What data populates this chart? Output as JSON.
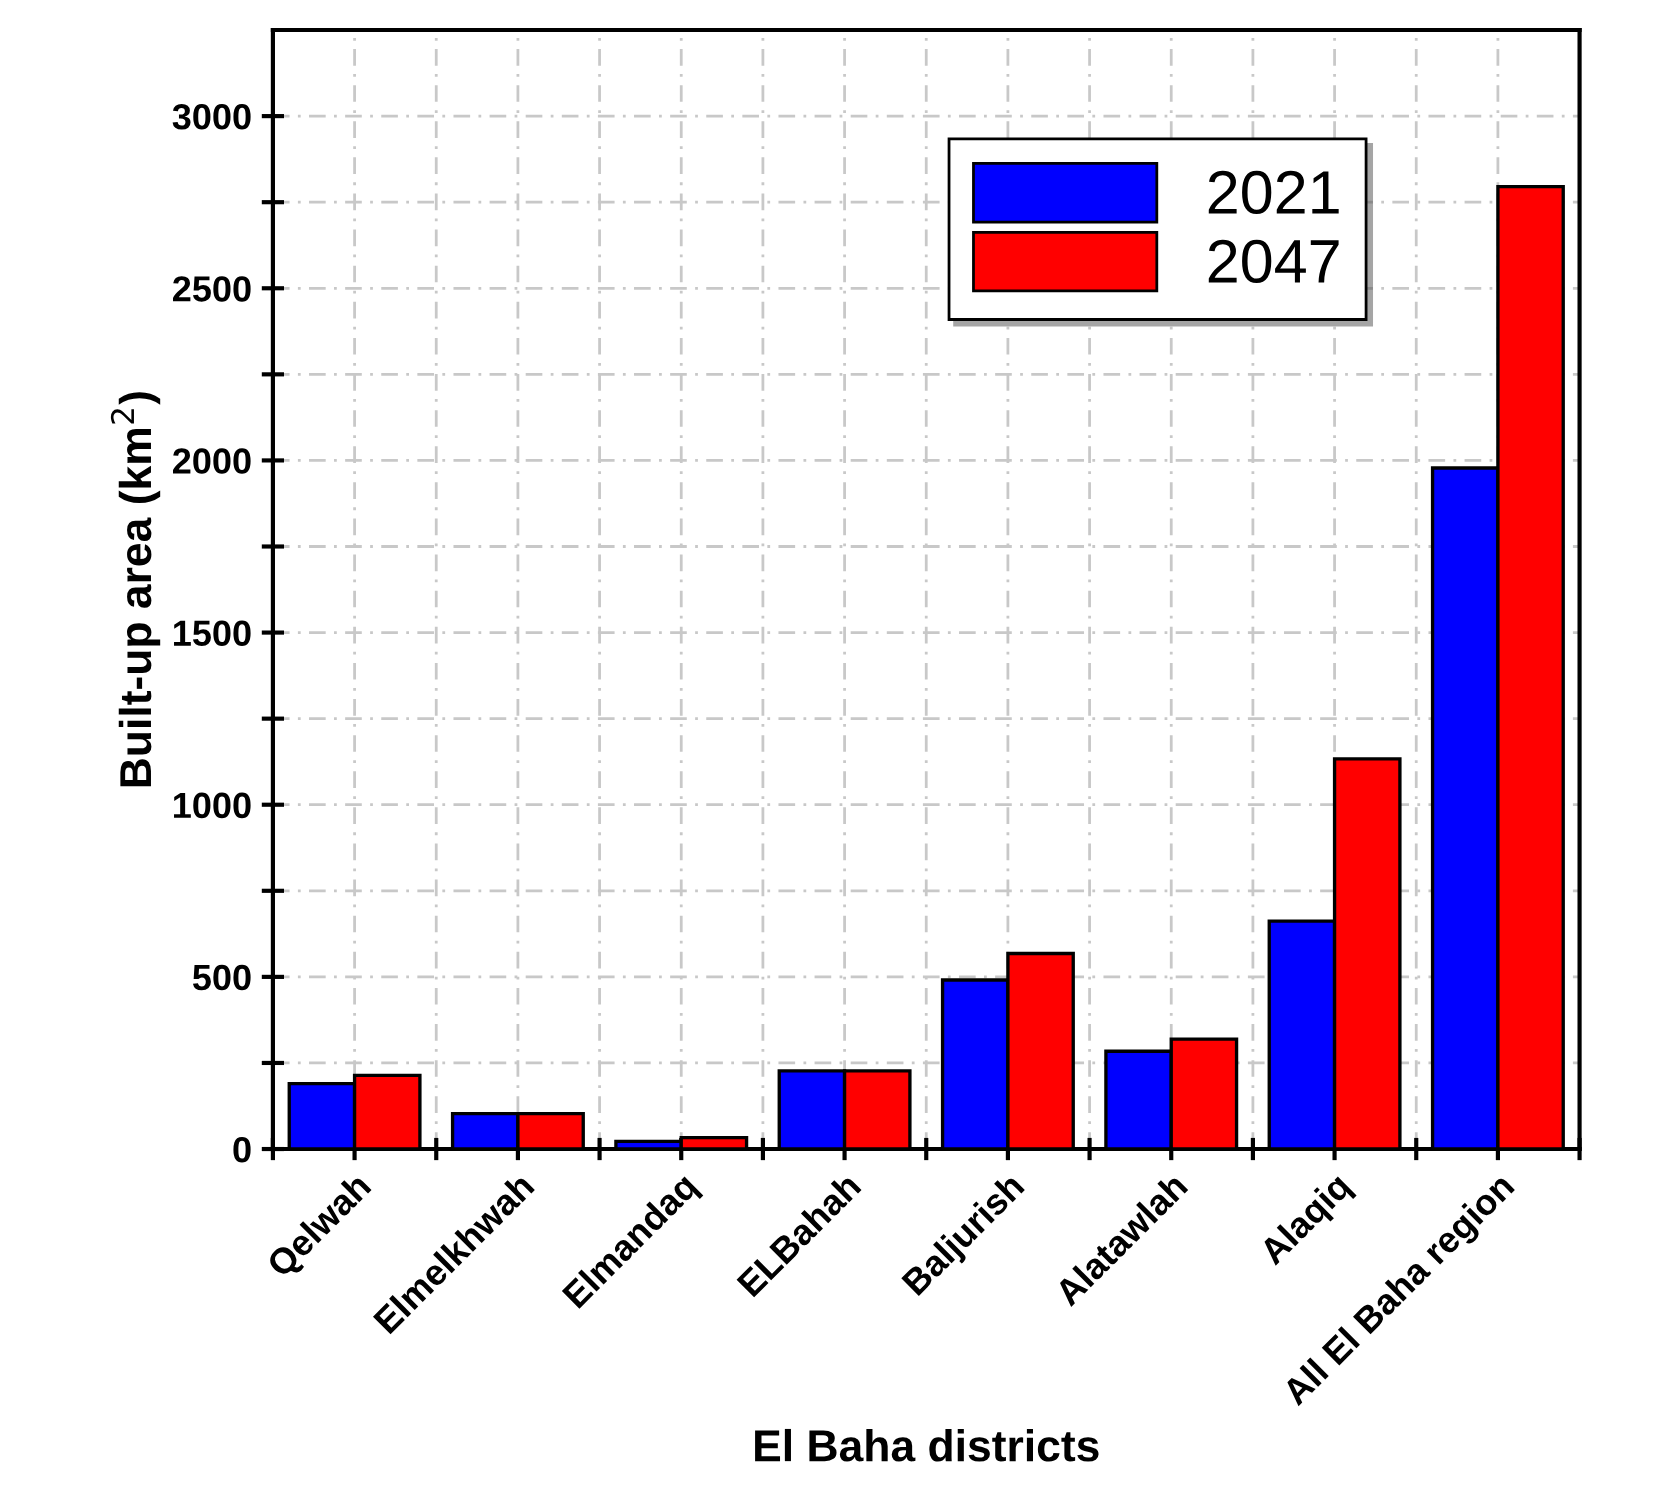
{
  "chart_data": {
    "type": "bar",
    "xlabel": "El Baha districts",
    "ylabel": "Built-up area (km$^{2}$)",
    "categories": [
      "Qelwah",
      "Elmelkhwah",
      "Elmandaq",
      "ELBahah",
      "Baljurish",
      "Alatawlah",
      "Alaqiq",
      "All El Baha region"
    ],
    "series": [
      {
        "name": "2021",
        "color": "#0000ff",
        "values": [
          190,
          103,
          22,
          227,
          491,
          284,
          662,
          1978
        ]
      },
      {
        "name": "2047",
        "color": "#ff0000",
        "values": [
          214,
          103,
          33,
          227,
          568,
          319,
          1133,
          2795
        ]
      }
    ],
    "ylim": [
      0,
      3250
    ],
    "yticks": [
      0,
      {
        "value": 250,
        "label": null
      },
      500,
      {
        "value": 750,
        "label": null
      },
      1000,
      {
        "value": 1250,
        "label": null
      },
      1500,
      {
        "value": 1750,
        "label": null
      },
      2000,
      {
        "value": 2250,
        "label": null
      },
      2500,
      {
        "value": 2750,
        "label": null
      },
      3000
    ],
    "grid": true,
    "legend": "top right"
  }
}
